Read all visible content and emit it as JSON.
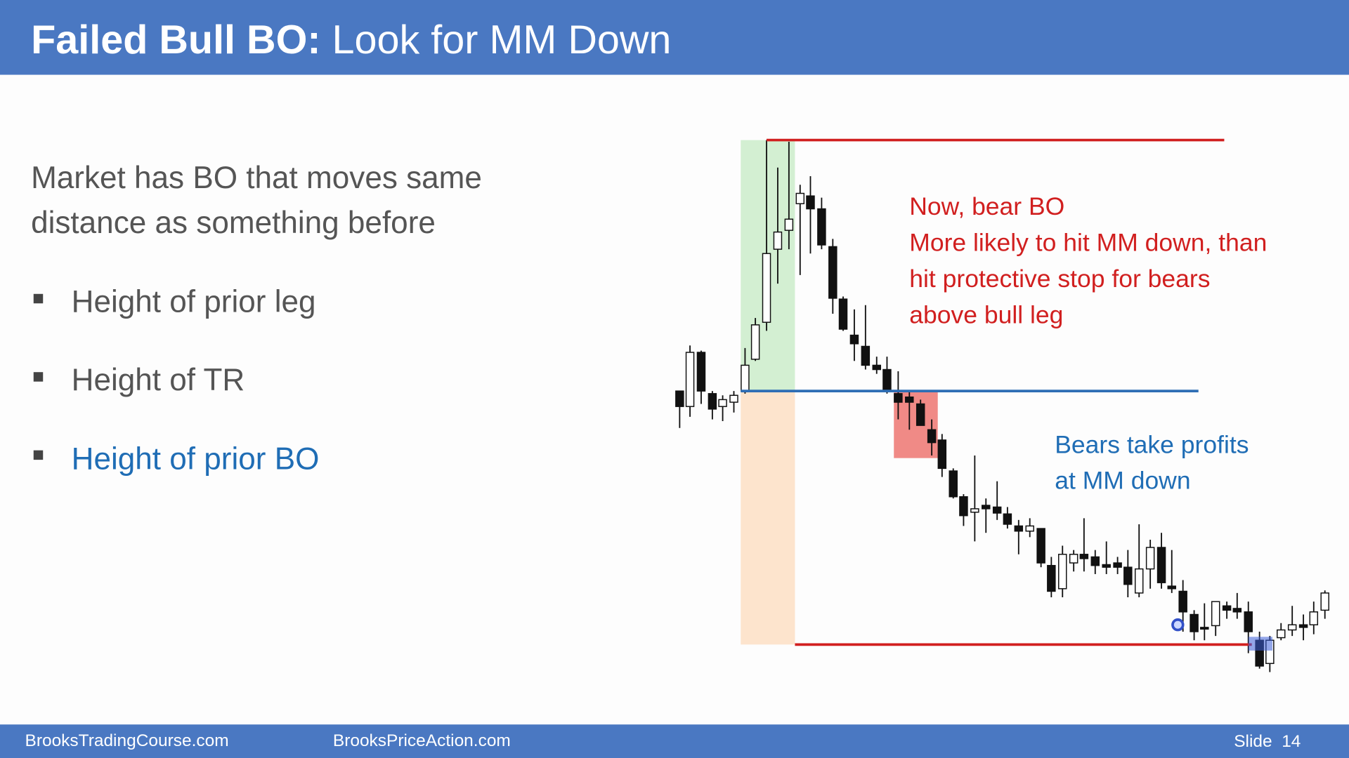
{
  "header": {
    "title_bold": "Failed Bull BO:",
    "title_rest": "Look for MM Down"
  },
  "body": {
    "intro": [
      "Market has BO that moves same",
      "distance as something before"
    ],
    "bullets": [
      "Height of prior leg",
      "Height of TR",
      "Height of prior BO"
    ]
  },
  "annotations": {
    "bear_bo": [
      "Now, bear BO",
      "More likely to hit MM down, than",
      "hit protective stop for bears",
      "above bull leg"
    ],
    "profits": [
      "Bears take profits",
      "at MM down"
    ]
  },
  "footer": {
    "left": "BrooksTradingCourse.com",
    "middle": "BrooksPriceAction.com",
    "slide": "Slide  14"
  }
}
